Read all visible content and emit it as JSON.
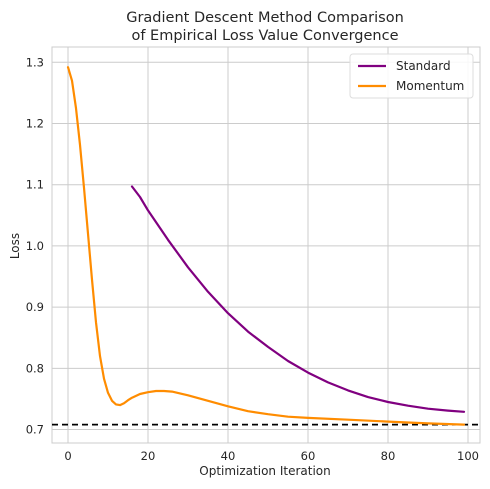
{
  "chart_data": {
    "type": "line",
    "title_line1": "Gradient Descent Method Comparison",
    "title_line2": "of Empirical Loss Value Convergence",
    "xlabel": "Optimization Iteration",
    "ylabel": "Loss",
    "xlim": [
      -4,
      103
    ],
    "ylim": [
      0.678,
      1.325
    ],
    "xticks": [
      0,
      20,
      40,
      60,
      80,
      100
    ],
    "yticks": [
      0.7,
      0.8,
      0.9,
      1.0,
      1.1,
      1.2,
      1.3
    ],
    "xtick_labels": [
      "0",
      "20",
      "40",
      "60",
      "80",
      "100"
    ],
    "ytick_labels": [
      "0.7",
      "0.8",
      "0.9",
      "1.0",
      "1.1",
      "1.2",
      "1.3"
    ],
    "grid": true,
    "legend_position": "upper right",
    "reference_line": {
      "y": 0.708,
      "style": "dashed",
      "color": "#000000"
    },
    "series": [
      {
        "name": "Standard",
        "color": "#800080",
        "x": [
          16,
          18,
          20,
          25,
          30,
          35,
          40,
          45,
          50,
          55,
          60,
          65,
          70,
          75,
          80,
          85,
          90,
          95,
          99
        ],
        "y": [
          1.097,
          1.08,
          1.058,
          1.01,
          0.965,
          0.925,
          0.89,
          0.86,
          0.835,
          0.812,
          0.793,
          0.777,
          0.764,
          0.753,
          0.745,
          0.739,
          0.734,
          0.731,
          0.729
        ]
      },
      {
        "name": "Momentum",
        "color": "#ff8c00",
        "x": [
          0,
          1,
          2,
          3,
          4,
          5,
          6,
          7,
          8,
          9,
          10,
          11,
          12,
          13,
          14,
          15,
          16,
          17,
          18,
          20,
          22,
          24,
          26,
          28,
          30,
          35,
          40,
          45,
          50,
          55,
          60,
          70,
          80,
          90,
          99
        ],
        "y": [
          1.292,
          1.27,
          1.225,
          1.165,
          1.095,
          1.02,
          0.945,
          0.875,
          0.82,
          0.783,
          0.76,
          0.747,
          0.741,
          0.74,
          0.743,
          0.748,
          0.752,
          0.755,
          0.758,
          0.761,
          0.763,
          0.763,
          0.762,
          0.759,
          0.756,
          0.747,
          0.738,
          0.73,
          0.725,
          0.721,
          0.719,
          0.716,
          0.713,
          0.71,
          0.708
        ]
      }
    ]
  }
}
